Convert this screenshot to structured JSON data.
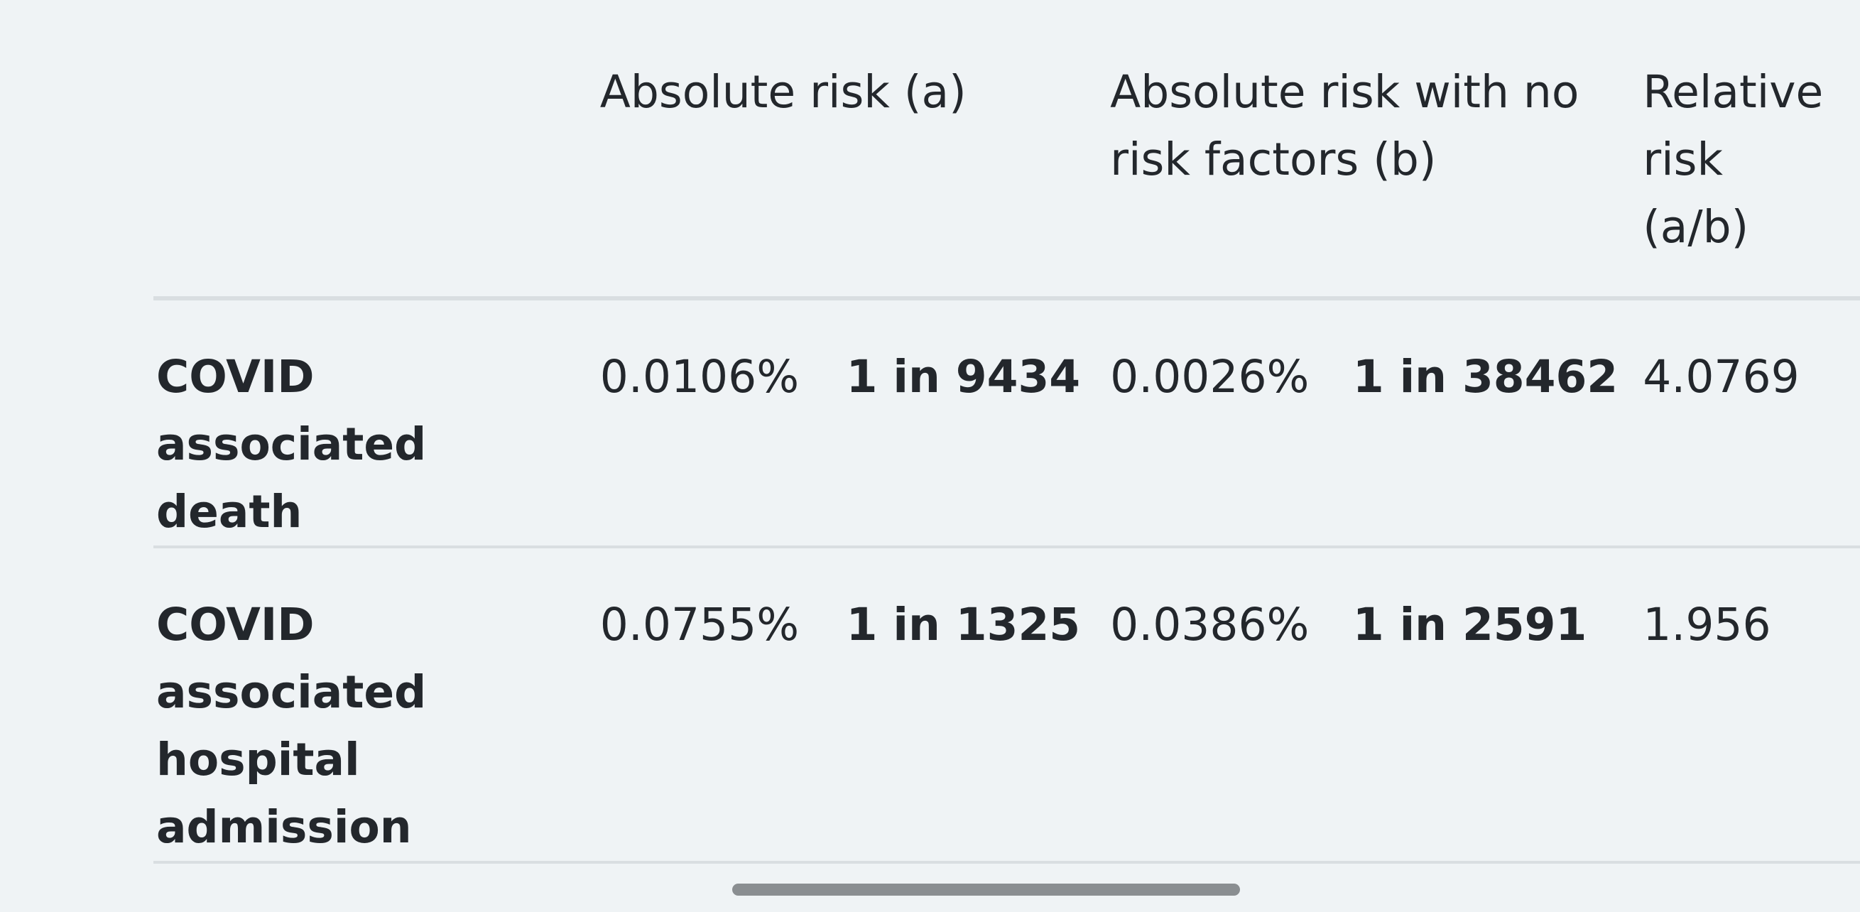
{
  "table": {
    "headers": {
      "absolute_risk": "Absolute risk (a)",
      "absolute_risk_no_factors": "Absolute risk with no risk factors (b)",
      "relative_risk": "Relative risk (a/b)"
    },
    "rows": [
      {
        "label": "COVID associated death",
        "abs_pct": "0.0106%",
        "abs_one_in": "1 in 9434",
        "base_pct": "0.0026%",
        "base_one_in": "1 in 38462",
        "relative": "4.0769"
      },
      {
        "label": "COVID associated hospital admission",
        "abs_pct": "0.0755%",
        "abs_one_in": "1 in 1325",
        "base_pct": "0.0386%",
        "base_one_in": "1 in 2591",
        "relative": "1.956"
      }
    ]
  }
}
